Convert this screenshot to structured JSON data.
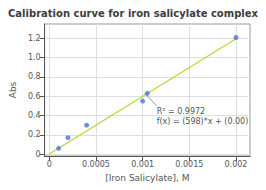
{
  "chart_data": {
    "type": "scatter",
    "title": "Calibration curve for iron salicylate complex",
    "xlabel": "[Iron Salicylate], M",
    "ylabel": "Abs",
    "series": [
      {
        "type": "scatter",
        "x": [
          0.0001,
          0.0002,
          0.0004,
          0.001,
          0.00105,
          0.002
        ],
        "values": [
          0.06,
          0.17,
          0.3,
          0.55,
          0.63,
          1.21
        ]
      },
      {
        "type": "line",
        "x": [
          0.0,
          0.002
        ],
        "values": [
          0.0,
          1.196
        ]
      }
    ],
    "annotations": [
      {
        "text": "R² = 0.9972\nf(x) = (598)*x + (0.00)",
        "x": 0.00115,
        "y": 0.5,
        "arrow_x": 0.00102,
        "arrow_y": 0.635
      }
    ],
    "xlim": [
      -5e-05,
      0.00215
    ],
    "ylim": [
      -0.02,
      1.35
    ],
    "xticks": [
      0,
      0.0005,
      0.001,
      0.0015,
      0.002
    ],
    "yticks": [
      0,
      0.2,
      0.4,
      0.6,
      0.8,
      {
        "value": 1.0,
        "label": "1.0"
      },
      1.2
    ],
    "grid": true
  }
}
